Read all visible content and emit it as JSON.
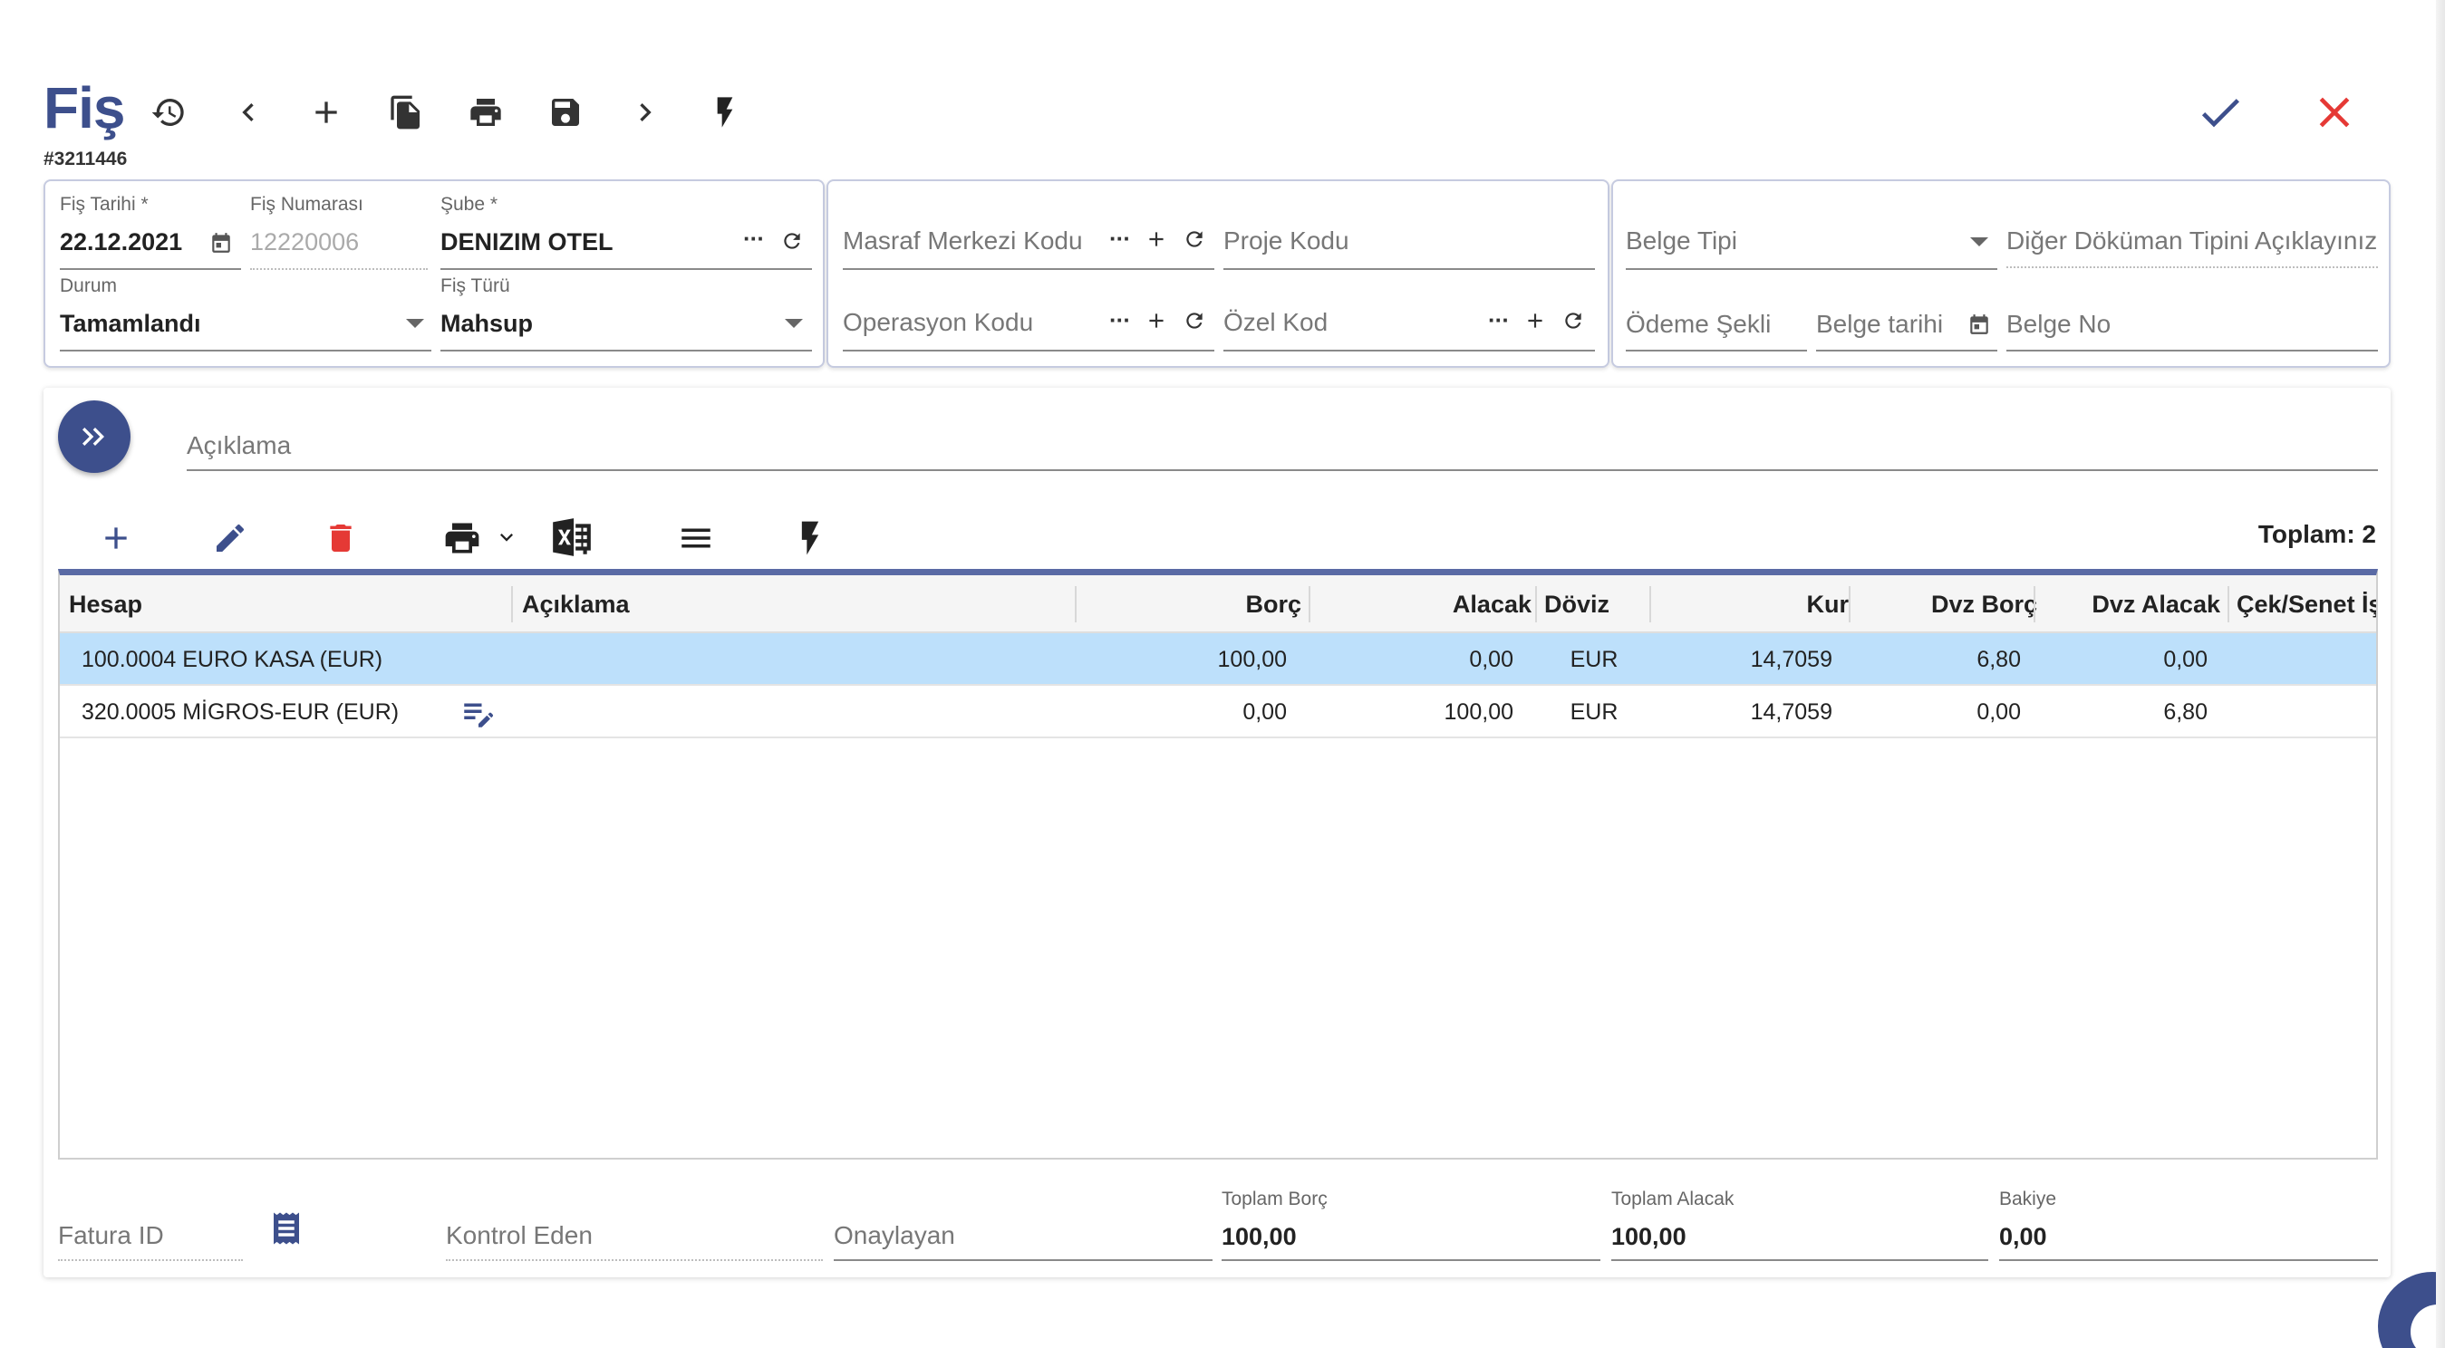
{
  "header": {
    "title": "Fiş",
    "doc_id": "#3211446"
  },
  "panel1": {
    "fis_tarihi": {
      "label": "Fiş Tarihi *",
      "value": "22.12.2021"
    },
    "fis_numarasi": {
      "label": "Fiş Numarası",
      "value": "12220006"
    },
    "sube": {
      "label": "Şube *",
      "value": "DENIZIM OTEL"
    },
    "durum": {
      "label": "Durum",
      "value": "Tamamlandı"
    },
    "fis_turu": {
      "label": "Fiş Türü",
      "value": "Mahsup"
    }
  },
  "panel2": {
    "masraf_merkezi": {
      "placeholder": "Masraf Merkezi Kodu"
    },
    "proje_kodu": {
      "placeholder": "Proje Kodu"
    },
    "operasyon_kodu": {
      "placeholder": "Operasyon Kodu"
    },
    "ozel_kod": {
      "placeholder": "Özel Kod"
    }
  },
  "panel3": {
    "belge_tipi": {
      "placeholder": "Belge Tipi"
    },
    "diger_dokuman": {
      "placeholder": "Diğer Döküman Tipini Açıklayınız"
    },
    "odeme_sekli": {
      "placeholder": "Ödeme Şekli"
    },
    "belge_tarihi": {
      "placeholder": "Belge tarihi"
    },
    "belge_no": {
      "placeholder": "Belge No"
    }
  },
  "aciklama": {
    "placeholder": "Açıklama"
  },
  "grid": {
    "total_label": "Toplam: 2",
    "columns": [
      "Hesap",
      "Açıklama",
      "Borç",
      "Alacak",
      "Döviz",
      "Kur",
      "Dvz Borç",
      "Dvz Alacak",
      "Çek/Senet İş"
    ],
    "rows": [
      {
        "hesap": "100.0004 EURO KASA (EUR)",
        "aciklama": "",
        "borc": "100,00",
        "alacak": "0,00",
        "doviz": "EUR",
        "kur": "14,7059",
        "dvz_borc": "6,80",
        "dvz_alacak": "0,00"
      },
      {
        "hesap": "320.0005 MİGROS-EUR (EUR)",
        "aciklama": "",
        "borc": "0,00",
        "alacak": "100,00",
        "doviz": "EUR",
        "kur": "14,7059",
        "dvz_borc": "0,00",
        "dvz_alacak": "6,80"
      }
    ]
  },
  "footer": {
    "fatura_id": {
      "placeholder": "Fatura ID"
    },
    "kontrol_eden": {
      "placeholder": "Kontrol Eden"
    },
    "onaylayan": {
      "placeholder": "Onaylayan"
    },
    "toplam_borc": {
      "label": "Toplam Borç",
      "value": "100,00"
    },
    "toplam_alacak": {
      "label": "Toplam Alacak",
      "value": "100,00"
    },
    "bakiye": {
      "label": "Bakiye",
      "value": "0,00"
    }
  },
  "colors": {
    "accent": "#3d4f8c",
    "danger": "#e53935",
    "selected_row": "#bde0fb"
  }
}
